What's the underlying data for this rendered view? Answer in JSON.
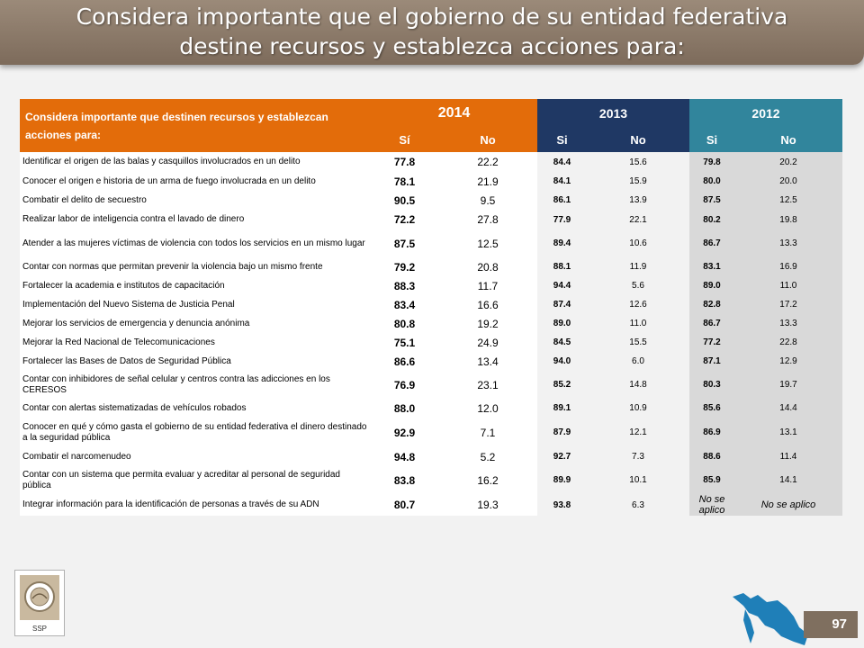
{
  "slide": {
    "title_line1": "Considera importante que el gobierno de su entidad federativa",
    "title_line2": "destine recursos y establezca acciones para:",
    "page_number": "97",
    "logo_label": "SSP"
  },
  "table": {
    "question_header": "Considera importante que destinen recursos y establezcan acciones para:",
    "years": [
      "2014",
      "2013",
      "2012"
    ],
    "sub_headers": [
      "Sí",
      "No",
      "Si",
      "No",
      "Si",
      "No"
    ],
    "rows": [
      {
        "label": "Identificar el origen de las balas y casquillos involucrados en un delito",
        "v": [
          "77.8",
          "22.2",
          "84.4",
          "15.6",
          "79.8",
          "20.2"
        ]
      },
      {
        "label": "Conocer el origen e historia de un arma de fuego involucrada en un delito",
        "v": [
          "78.1",
          "21.9",
          "84.1",
          "15.9",
          "80.0",
          "20.0"
        ]
      },
      {
        "label": "Combatir el delito de secuestro",
        "v": [
          "90.5",
          "9.5",
          "86.1",
          "13.9",
          "87.5",
          "12.5"
        ]
      },
      {
        "label": "Realizar labor de inteligencia contra el lavado de dinero",
        "v": [
          "72.2",
          "27.8",
          "77.9",
          "22.1",
          "80.2",
          "19.8"
        ]
      },
      {
        "label": "Atender a las mujeres víctimas de violencia con todos los servicios en un mismo lugar",
        "v": [
          "87.5",
          "12.5",
          "89.4",
          "10.6",
          "86.7",
          "13.3"
        ]
      },
      {
        "label": "Contar con normas que permitan prevenir la violencia bajo un mismo frente",
        "v": [
          "79.2",
          "20.8",
          "88.1",
          "11.9",
          "83.1",
          "16.9"
        ]
      },
      {
        "label": "Fortalecer la academia e institutos de capacitación",
        "v": [
          "88.3",
          "11.7",
          "94.4",
          "5.6",
          "89.0",
          "11.0"
        ]
      },
      {
        "label": "Implementación del Nuevo Sistema de Justicia Penal",
        "v": [
          "83.4",
          "16.6",
          "87.4",
          "12.6",
          "82.8",
          "17.2"
        ]
      },
      {
        "label": "Mejorar los servicios de emergencia y denuncia anónima",
        "v": [
          "80.8",
          "19.2",
          "89.0",
          "11.0",
          "86.7",
          "13.3"
        ]
      },
      {
        "label": "Mejorar la Red Nacional de Telecomunicaciones",
        "v": [
          "75.1",
          "24.9",
          "84.5",
          "15.5",
          "77.2",
          "22.8"
        ]
      },
      {
        "label": "Fortalecer las Bases de Datos de Seguridad Pública",
        "v": [
          "86.6",
          "13.4",
          "94.0",
          "6.0",
          "87.1",
          "12.9"
        ]
      },
      {
        "label": "Contar con inhibidores de señal celular y centros contra las adicciones en los CERESOS",
        "v": [
          "76.9",
          "23.1",
          "85.2",
          "14.8",
          "80.3",
          "19.7"
        ]
      },
      {
        "label": "Contar con alertas sistematizadas de vehículos robados",
        "v": [
          "88.0",
          "12.0",
          "89.1",
          "10.9",
          "85.6",
          "14.4"
        ]
      },
      {
        "label": "Conocer en qué y cómo gasta el gobierno de su entidad federativa el dinero destinado a la seguridad pública",
        "v": [
          "92.9",
          "7.1",
          "87.9",
          "12.1",
          "86.9",
          "13.1"
        ]
      },
      {
        "label": "Combatir el narcomenudeo",
        "v": [
          "94.8",
          "5.2",
          "92.7",
          "7.3",
          "88.6",
          "11.4"
        ]
      },
      {
        "label": "Contar con un sistema que permita evaluar y acreditar al personal de seguridad pública",
        "v": [
          "83.8",
          "16.2",
          "89.9",
          "10.1",
          "85.9",
          "14.1"
        ]
      },
      {
        "label": "Integrar información para la identificación de personas a través de su ADN",
        "v": [
          "80.7",
          "19.3",
          "93.8",
          "6.3",
          "No se aplico",
          "No se aplico"
        ]
      }
    ]
  },
  "colors": {
    "orange_2014": "#e36c0a",
    "navy_2013": "#1f3864",
    "teal_2012": "#31859c",
    "banner_brown": "#8a7868"
  },
  "icons": {
    "logo": "ssp-seal-icon",
    "map": "state-map-icon"
  }
}
